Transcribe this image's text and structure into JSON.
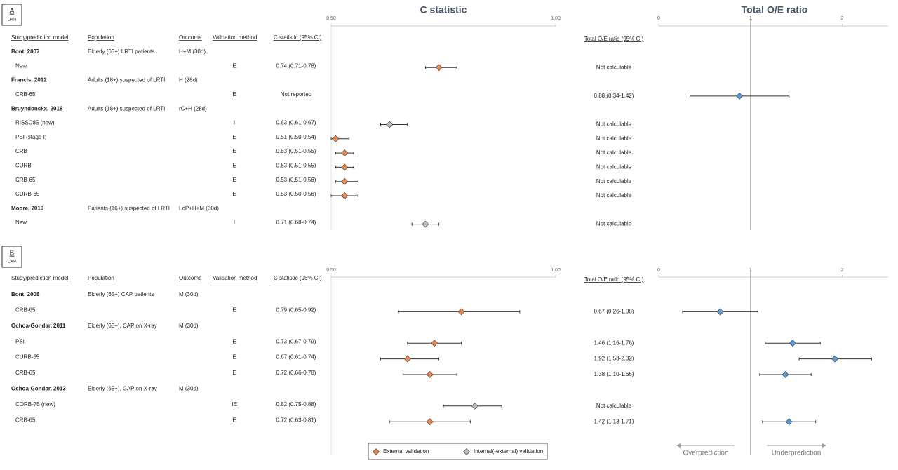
{
  "chart_data": [
    {
      "type": "forest",
      "panel": "A",
      "subtitle": "LRTI",
      "c_title": "C statistic",
      "oe_title": "Total O/E ratio",
      "columns": [
        "Study/prediction model",
        "Population",
        "Outcome",
        "Validation method",
        "C statistic (95% CI)"
      ],
      "oe_header": "Total O/E ratio (95% CI)",
      "c_xlim": [
        0.5,
        1.0
      ],
      "c_xticks": [
        {
          "value": 0.5,
          "label": "0,50"
        },
        {
          "value": 1.0,
          "label": "1,00"
        }
      ],
      "oe_xlim": [
        0,
        2.5
      ],
      "oe_xticks": [
        0,
        1,
        2
      ],
      "oe_reference": 1,
      "rows": [
        {
          "study": "Bont, 2007",
          "population": "Elderly (65+) LRTI patients",
          "outcome": "H+M (30d)"
        },
        {
          "model": "New",
          "validation": "E",
          "c": [
            0.74,
            0.71,
            0.78
          ],
          "c_label": "0.74 (0.71-0.78)",
          "oe_label": "Not calculable"
        },
        {
          "study": "Francis, 2012",
          "population": "Adults (18+) suspected of LRTI",
          "outcome": "H (28d)"
        },
        {
          "model": "CRB-65",
          "validation": "E",
          "c_label": "Not reported",
          "oe": [
            0.88,
            0.34,
            1.42
          ],
          "oe_label": "0.88 (0.34-1.42)"
        },
        {
          "study": "Bruyndonckx, 2018",
          "population": "Adults (18+) suspected of LRTI",
          "outcome": "rC+H (28d)"
        },
        {
          "model": "RISSC85 (new)",
          "validation": "I",
          "c": [
            0.63,
            0.61,
            0.67
          ],
          "c_label": "0.63 (0.61-0.67)",
          "oe_label": "Not calculable"
        },
        {
          "model": "PSI (stage I)",
          "validation": "E",
          "c": [
            0.51,
            0.5,
            0.54
          ],
          "c_label": "0.51 (0.50-0.54)",
          "oe_label": "Not calculable"
        },
        {
          "model": "CRB",
          "validation": "E",
          "c": [
            0.53,
            0.51,
            0.55
          ],
          "c_label": "0.53 (0.51-0.55)",
          "oe_label": "Not calculable"
        },
        {
          "model": "CURB",
          "validation": "E",
          "c": [
            0.53,
            0.51,
            0.55
          ],
          "c_label": "0.53 (0.51-0.55)",
          "oe_label": "Not calculable"
        },
        {
          "model": "CRB-65",
          "validation": "E",
          "c": [
            0.53,
            0.51,
            0.56
          ],
          "c_label": "0.53 (0.51-0.56)",
          "oe_label": "Not calculable"
        },
        {
          "model": "CURB-65",
          "validation": "E",
          "c": [
            0.53,
            0.5,
            0.56
          ],
          "c_label": "0.53 (0.50-0.56)",
          "oe_label": "Not calculable"
        },
        {
          "study": "Moore, 2019",
          "population": "Patients (16+) suspected of LRTI",
          "outcome": "LoP+H+M (30d)"
        },
        {
          "model": "New",
          "validation": "I",
          "c": [
            0.71,
            0.68,
            0.74
          ],
          "c_label": "0.71 (0.68-0.74)",
          "oe_label": "Not calculable"
        }
      ]
    },
    {
      "type": "forest",
      "panel": "B",
      "subtitle": "CAP",
      "columns": [
        "Study/prediction model",
        "Population",
        "Outcome",
        "Validation method",
        "C statistic (95% CI)"
      ],
      "oe_header": "Total O/E ratio (95% CI)",
      "c_xlim": [
        0.5,
        1.0
      ],
      "c_xticks": [
        {
          "value": 0.5,
          "label": "0,50"
        },
        {
          "value": 1.0,
          "label": "1,00"
        }
      ],
      "oe_xlim": [
        0,
        2.5
      ],
      "oe_xticks": [
        0,
        1,
        2
      ],
      "oe_reference": 1,
      "rows": [
        {
          "study": "Bont, 2008",
          "population": "Elderly (65+) CAP patients",
          "outcome": "M (30d)"
        },
        {
          "model": "CRB-65",
          "validation": "E",
          "c": [
            0.79,
            0.65,
            0.92
          ],
          "c_label": "0.79 (0.65-0.92)",
          "oe": [
            0.67,
            0.26,
            1.08
          ],
          "oe_label": "0.67 (0.26-1.08)"
        },
        {
          "study": "Ochoa-Gondar, 2011",
          "population": "Elderly (65+), CAP on X-ray",
          "outcome": "M (30d)"
        },
        {
          "model": "PSI",
          "validation": "E",
          "c": [
            0.73,
            0.67,
            0.79
          ],
          "c_label": "0.73 (0.67-0.79)",
          "oe": [
            1.46,
            1.16,
            1.76
          ],
          "oe_label": "1.46 (1.16-1.76)"
        },
        {
          "model": "CURB-65",
          "validation": "E",
          "c": [
            0.67,
            0.61,
            0.74
          ],
          "c_label": "0.67 (0.61-0.74)",
          "oe": [
            1.92,
            1.53,
            2.32
          ],
          "oe_label": "1.92 (1.53-2.32)"
        },
        {
          "model": "CRB-65",
          "validation": "E",
          "c": [
            0.72,
            0.66,
            0.78
          ],
          "c_label": "0.72 (0.66-0.78)",
          "oe": [
            1.38,
            1.1,
            1.66
          ],
          "oe_label": "1.38 (1.10-1.66)"
        },
        {
          "study": "Ochoa-Gondar, 2013",
          "population": "Elderly (65+), CAP on X-ray",
          "outcome": "M (30d)"
        },
        {
          "model": "CORB-75 (new)",
          "validation": "IE",
          "c": [
            0.82,
            0.75,
            0.88
          ],
          "c_label": "0.82 (0.75-0.88)",
          "oe_label": "Not calculable"
        },
        {
          "model": "CRB-65",
          "validation": "E",
          "c": [
            0.72,
            0.63,
            0.81
          ],
          "c_label": "0.72 (0.63-0.81)",
          "oe": [
            1.42,
            1.13,
            1.71
          ],
          "oe_label": "1.42 (1.13-1.71)"
        }
      ],
      "legend": [
        {
          "name": "External validation",
          "color": "#e8894f"
        },
        {
          "name": "Internal(-external) validation",
          "color": "#b4bac2"
        }
      ],
      "oe_color": "#5b9bd5",
      "annotations": [
        "Overprediction",
        "Underprediction"
      ]
    }
  ]
}
